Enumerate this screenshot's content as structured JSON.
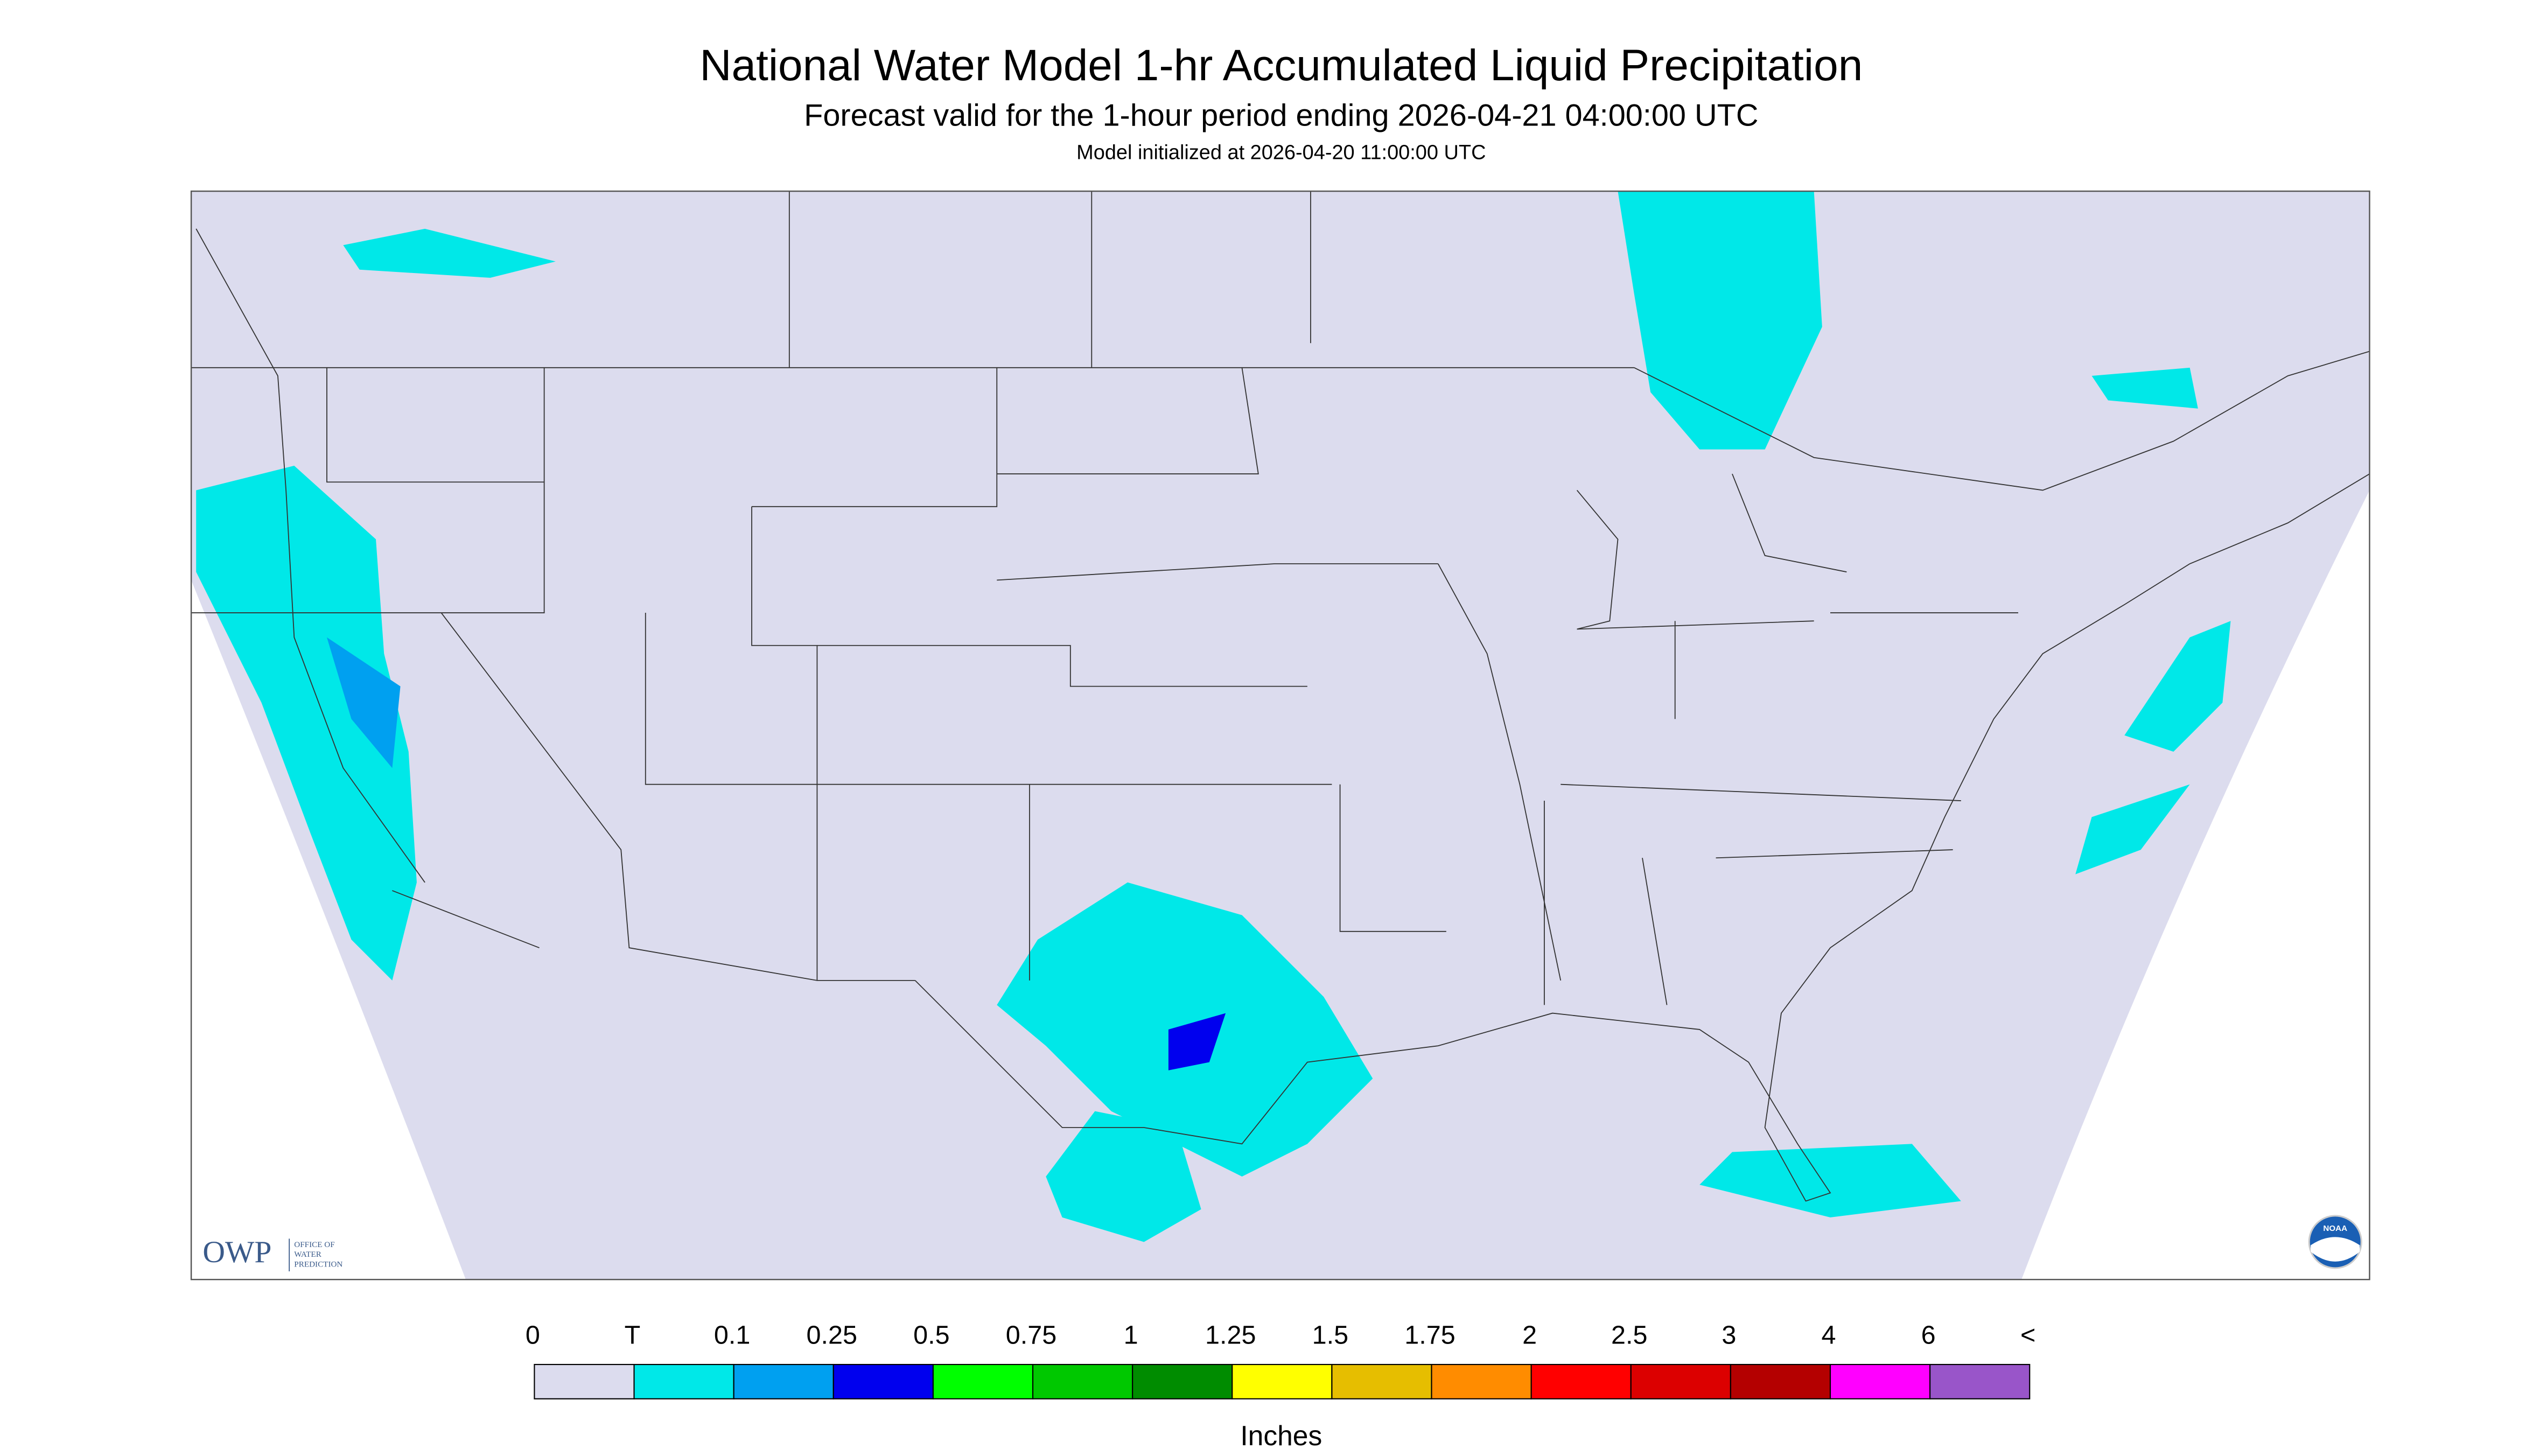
{
  "header": {
    "title": "National Water Model 1-hr Accumulated Liquid Precipitation",
    "subtitle": "Forecast valid for the 1-hour period ending 2026-04-21 04:00:00 UTC",
    "init": "Model initialized at 2026-04-20 11:00:00 UTC"
  },
  "logo": {
    "short": "OWP",
    "lines": [
      "OFFICE OF",
      "WATER",
      "PREDICTION"
    ],
    "noaa": "NOAA"
  },
  "legend": {
    "labels": [
      "0",
      "T",
      "0.1",
      "0.25",
      "0.5",
      "0.75",
      "1",
      "1.25",
      "1.5",
      "1.75",
      "2",
      "2.5",
      "3",
      "4",
      "6",
      "<"
    ],
    "colors": [
      "#dcdcee",
      "#00e8e8",
      "#00a0f0",
      "#0000ee",
      "#00ff00",
      "#00c800",
      "#008c00",
      "#ffff00",
      "#e6be00",
      "#ff8c00",
      "#ff0000",
      "#dc0000",
      "#b40000",
      "#ff00ff",
      "#9955c9"
    ],
    "units": "Inches"
  }
}
